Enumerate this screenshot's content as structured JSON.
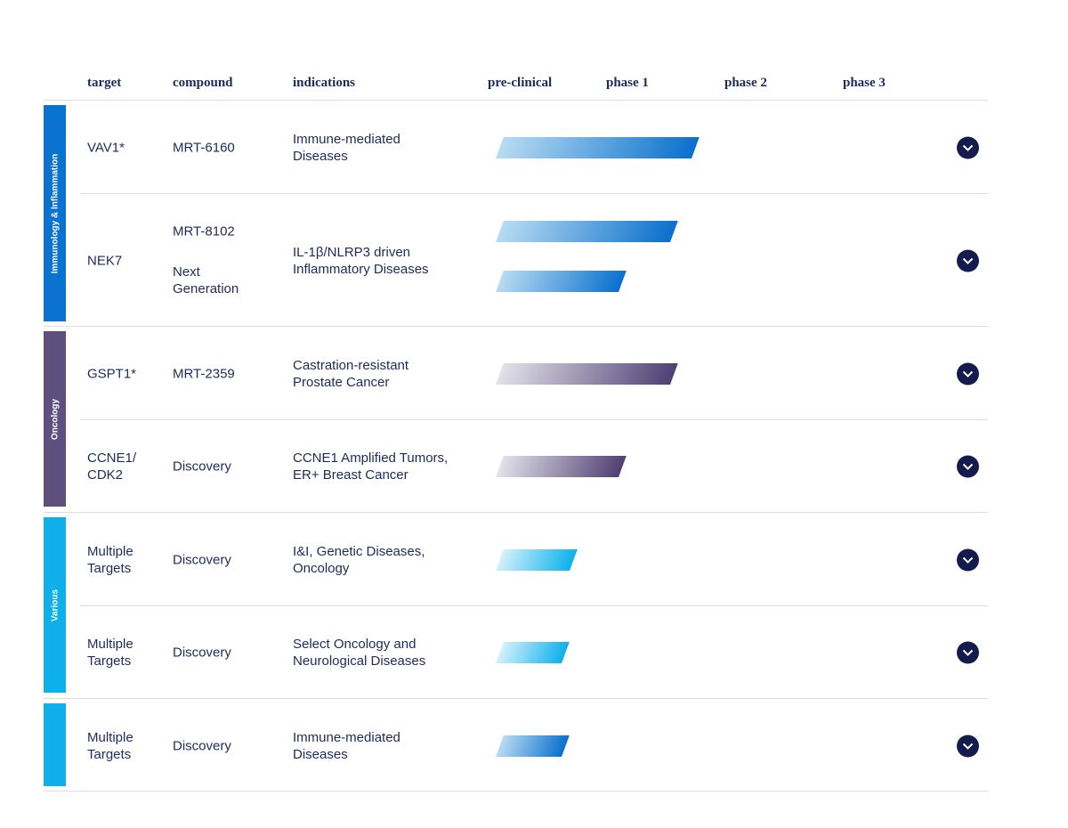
{
  "header": {
    "target": "target",
    "compound": "compound",
    "indications": "indications",
    "phases": [
      "pre-clinical",
      "phase 1",
      "phase 2",
      "phase 3"
    ]
  },
  "categories": [
    {
      "label": "Immunology & Inflammation",
      "color": "#0a72cf"
    },
    {
      "label": "Oncology",
      "color": "#5e4f7f"
    },
    {
      "label": "Various",
      "color": "#0eb0ea"
    },
    {
      "label": "",
      "color": "#0eb0ea"
    }
  ],
  "colors": {
    "blue_bar_start": "#b8dcf3",
    "blue_bar_end": "#0a6fcc",
    "purple_bar_start": "#e2e2ea",
    "purple_bar_end": "#4f3f73",
    "cyan_bar_start": "#d4f1fb",
    "cyan_bar_end": "#0bb1eb",
    "toggle_bg": "#141b4d",
    "text": "#1f2a5c",
    "rule": "#dcdde3"
  },
  "rows": [
    {
      "target": "VAV1*",
      "compound": "MRT-6160",
      "indication": "Immune-mediated\nDiseases",
      "progress": [
        {
          "stage": "phase 1",
          "fraction_of_phase1": 0.72,
          "style": "blue"
        }
      ]
    },
    {
      "target": "NEK7",
      "compound": "MRT-8102",
      "compound2": "Next\nGeneration",
      "indication": "IL-1β/NLRP3 driven\nInflammatory Diseases",
      "progress": [
        {
          "stage": "phase 1",
          "fraction_of_phase1": 0.54,
          "style": "blue"
        },
        {
          "stage": "pre-clinical",
          "fraction_of_preclinical": 0.99,
          "style": "blue"
        }
      ]
    },
    {
      "target": "GSPT1*",
      "compound": "MRT-2359",
      "indication": "Castration-resistant\nProstate Cancer",
      "progress": [
        {
          "stage": "phase 1",
          "fraction_of_phase1": 0.54,
          "style": "purple"
        }
      ]
    },
    {
      "target": "CCNE1/\nCDK2",
      "compound": "Discovery",
      "indication": "CCNE1 Amplified Tumors,\nER+ Breast Cancer",
      "progress": [
        {
          "stage": "pre-clinical",
          "fraction_of_preclinical": 0.99,
          "style": "purple"
        }
      ]
    },
    {
      "target": "Multiple\nTargets",
      "compound": "Discovery",
      "indication": "I&I, Genetic Diseases,\nOncology",
      "progress": [
        {
          "stage": "pre-clinical",
          "fraction_of_preclinical": 0.6,
          "style": "cyan"
        }
      ]
    },
    {
      "target": "Multiple\nTargets",
      "compound": "Discovery",
      "indication": "Select Oncology and\nNeurological Diseases",
      "progress": [
        {
          "stage": "pre-clinical",
          "fraction_of_preclinical": 0.54,
          "style": "cyan"
        }
      ]
    },
    {
      "target": "Multiple\nTargets",
      "compound": "Discovery",
      "indication": "Immune-mediated\nDiseases",
      "progress": [
        {
          "stage": "pre-clinical",
          "fraction_of_preclinical": 0.54,
          "style": "blue"
        }
      ]
    }
  ]
}
